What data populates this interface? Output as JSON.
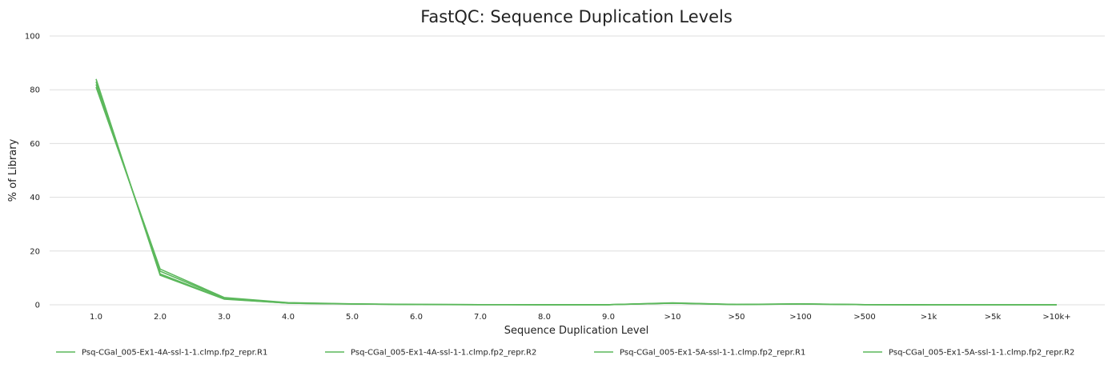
{
  "chart_data": {
    "type": "line",
    "title": "FastQC: Sequence Duplication Levels",
    "xlabel": "Sequence Duplication Level",
    "ylabel": "% of Library",
    "ylim": [
      0,
      100
    ],
    "yticks": [
      0,
      20,
      40,
      60,
      80,
      100
    ],
    "grid": true,
    "legend_position": "bottom",
    "categories": [
      "1.0",
      "2.0",
      "3.0",
      "4.0",
      "5.0",
      "6.0",
      "7.0",
      "8.0",
      "9.0",
      ">10",
      ">50",
      ">100",
      ">500",
      ">1k",
      ">5k",
      ">10k+"
    ],
    "series": [
      {
        "name": "Psq-CGal_005-Ex1-4A-ssl-1-1.clmp.fp2_repr.R1",
        "color": "#5cb85c",
        "values": [
          84.0,
          11.0,
          2.1,
          0.6,
          0.3,
          0.1,
          0.05,
          0.03,
          0.02,
          0.6,
          0.1,
          0.3,
          0.05,
          0.0,
          0.0,
          0.0
        ]
      },
      {
        "name": "Psq-CGal_005-Ex1-4A-ssl-1-1.clmp.fp2_repr.R2",
        "color": "#5cb85c",
        "values": [
          81.0,
          13.3,
          2.7,
          0.8,
          0.35,
          0.15,
          0.07,
          0.04,
          0.03,
          0.7,
          0.15,
          0.35,
          0.06,
          0.0,
          0.0,
          0.0
        ]
      },
      {
        "name": "Psq-CGal_005-Ex1-5A-ssl-1-1.clmp.fp2_repr.R1",
        "color": "#5cb85c",
        "values": [
          83.0,
          11.5,
          2.2,
          0.6,
          0.3,
          0.1,
          0.05,
          0.03,
          0.02,
          0.6,
          0.1,
          0.3,
          0.05,
          0.0,
          0.0,
          0.0
        ]
      },
      {
        "name": "Psq-CGal_005-Ex1-5A-ssl-1-1.clmp.fp2_repr.R2",
        "color": "#5cb85c",
        "values": [
          82.0,
          12.5,
          2.5,
          0.7,
          0.3,
          0.12,
          0.06,
          0.04,
          0.03,
          0.65,
          0.12,
          0.32,
          0.05,
          0.0,
          0.0,
          0.0
        ]
      }
    ]
  }
}
